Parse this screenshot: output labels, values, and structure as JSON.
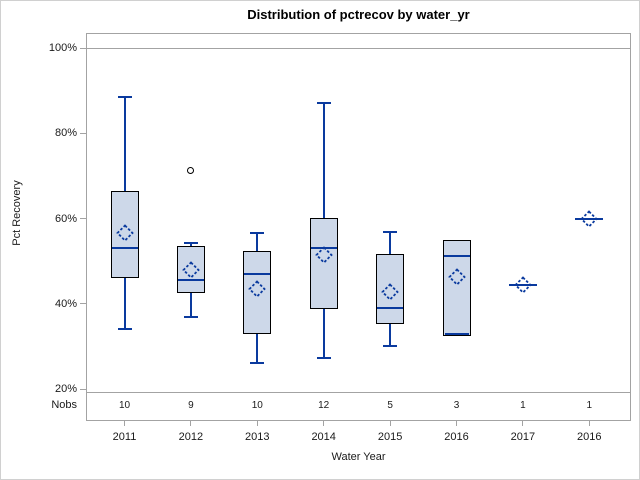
{
  "chart_data": {
    "type": "box",
    "title": "Distribution of pctrecov by water_yr",
    "xlabel": "Water Year",
    "ylabel": "Pct Recovery",
    "nobs_label": "Nobs",
    "y_axis": {
      "tick_labels": [
        "100%",
        "80%",
        "60%",
        "40%",
        "20%"
      ],
      "tick_values": [
        100,
        80,
        60,
        40,
        20
      ],
      "refline_value": 100,
      "grid": false
    },
    "categories": [
      "2011",
      "2012",
      "2013",
      "2014",
      "2015",
      "2016",
      "2017",
      "2016"
    ],
    "nobs": [
      10,
      9,
      10,
      12,
      5,
      3,
      1,
      1
    ],
    "series": [
      {
        "category": "2011",
        "n": 10,
        "min": 34,
        "q1": 46,
        "median": 53,
        "q3": 66.5,
        "max": 88.5,
        "mean": 56.5,
        "outliers": []
      },
      {
        "category": "2012",
        "n": 9,
        "min": 37,
        "q1": 42.5,
        "median": 45.5,
        "q3": 53.5,
        "max": 54.3,
        "mean": 48,
        "outliers": [
          71.3
        ]
      },
      {
        "category": "2013",
        "n": 10,
        "min": 26,
        "q1": 33,
        "median": 47,
        "q3": 52.3,
        "max": 56.5,
        "mean": 43.4,
        "outliers": []
      },
      {
        "category": "2014",
        "n": 12,
        "min": 27.3,
        "q1": 38.7,
        "median": 53,
        "q3": 60.2,
        "max": 87.2,
        "mean": 51.4,
        "outliers": []
      },
      {
        "category": "2015",
        "n": 5,
        "min": 30,
        "q1": 35.3,
        "median": 39,
        "q3": 51.6,
        "max": 56.8,
        "mean": 42.8,
        "outliers": []
      },
      {
        "category": "2016",
        "n": 3,
        "min": 32.4,
        "q1": 32.4,
        "median": 51.2,
        "q3": 55,
        "max": 55,
        "mean": 46.3,
        "outliers": []
      },
      {
        "category": "2017",
        "n": 1,
        "min": 44.5,
        "q1": 44.5,
        "median": 44.5,
        "q3": 44.5,
        "max": 44.5,
        "mean": 44.5,
        "outliers": []
      },
      {
        "category": "2016",
        "n": 1,
        "min": 60,
        "q1": 60,
        "median": 60,
        "q3": 60,
        "max": 60,
        "mean": 60,
        "outliers": []
      }
    ],
    "colors": {
      "box_fill": "#cdd8e9",
      "box_border": "#000000",
      "line": "#0a3a9e",
      "axis": "#a3a3a3",
      "text": "#1a1a1a",
      "outlier": "#000000"
    }
  }
}
